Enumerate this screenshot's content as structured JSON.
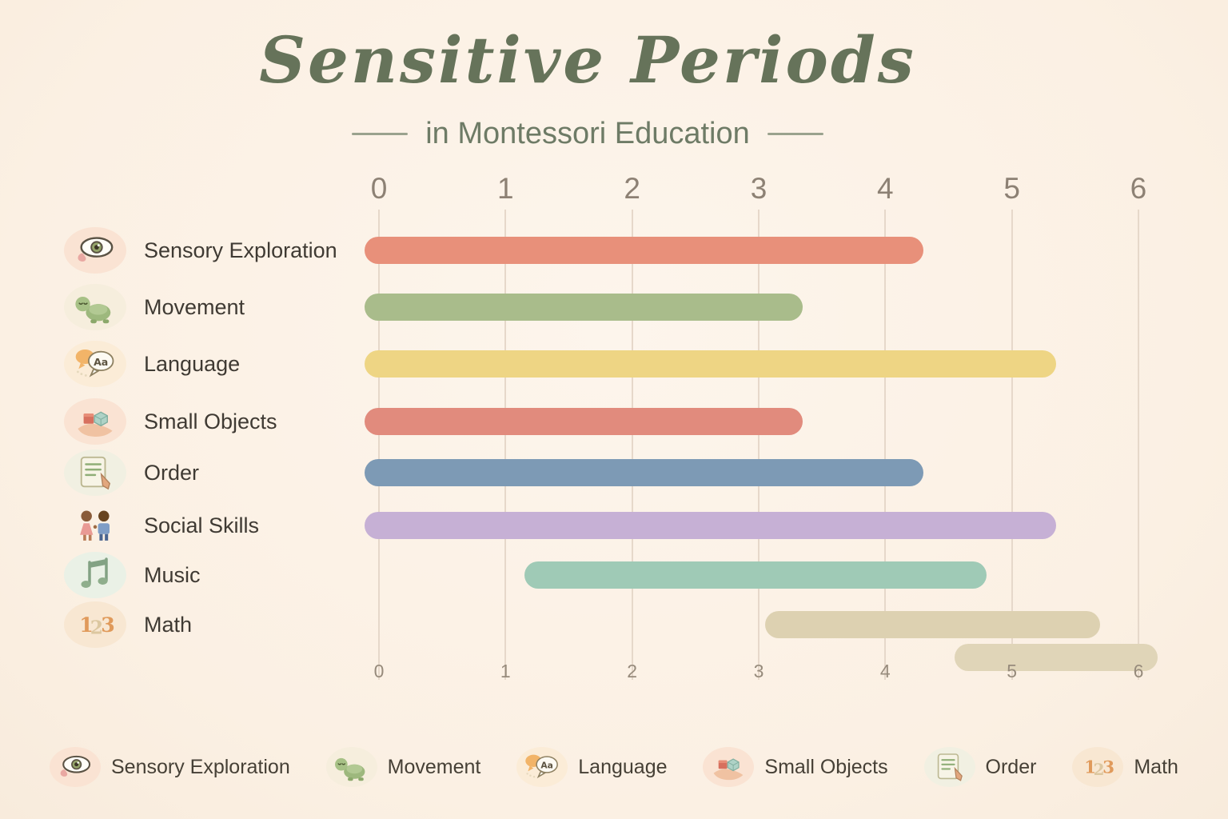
{
  "title": "Sensitive Periods",
  "subtitle": "in Montessori Education",
  "chart_data": {
    "type": "bar",
    "orientation": "horizontal",
    "title": "Sensitive Periods in Montessori Education",
    "xlim": [
      0,
      6
    ],
    "x_ticks": [
      "0",
      "1",
      "2",
      "3",
      "4",
      "5",
      "6"
    ],
    "x_ticks_position": "top and bottom",
    "grid": true,
    "legend_position": "bottom",
    "rows": [
      {
        "label": "Sensory Exploration",
        "icon": "eye-icon",
        "start": 0,
        "end": 4.3,
        "color": "#e8907a"
      },
      {
        "label": "Movement",
        "icon": "crawling-baby-icon",
        "start": 0,
        "end": 3.35,
        "color": "#a9bc8b"
      },
      {
        "label": "Language",
        "icon": "speech-bubbles-icon",
        "start": 0,
        "end": 5.35,
        "color": "#eed584"
      },
      {
        "label": "Small Objects",
        "icon": "hand-with-blocks-icon",
        "start": 0,
        "end": 3.35,
        "color": "#e18b7d"
      },
      {
        "label": "Order",
        "icon": "checklist-icon",
        "start": 0,
        "end": 4.3,
        "color": "#7d9ab5"
      },
      {
        "label": "Social Skills",
        "icon": "children-icon",
        "start": 0,
        "end": 5.35,
        "color": "#c6b0d5"
      },
      {
        "label": "Music",
        "icon": "music-note-icon",
        "start": 1.15,
        "end": 4.8,
        "color": "#9fcab6"
      },
      {
        "label": "Math",
        "icon": "numbers-123-icon",
        "start": 3.05,
        "end": 5.7,
        "color": "#ddd1b1"
      }
    ],
    "unlabeled_overflow_bar": {
      "start": 4.55,
      "end": 6.15,
      "color": "#e0d5b8"
    }
  },
  "legend": {
    "items": [
      {
        "label": "Sensory Exploration",
        "icon": "eye-icon"
      },
      {
        "label": "Movement",
        "icon": "crawling-baby-icon"
      },
      {
        "label": "Language",
        "icon": "speech-bubbles-icon"
      },
      {
        "label": "Small Objects",
        "icon": "hand-with-blocks-icon"
      },
      {
        "label": "Order",
        "icon": "checklist-icon"
      },
      {
        "label": "Math",
        "icon": "numbers-123-icon"
      }
    ]
  },
  "colors": {
    "background": "#fcf2e7",
    "title_text": "#66735a",
    "subtitle_text": "#6e7b66",
    "grid_line": "#e6d8ca",
    "axis_text_top": "#8d8174",
    "axis_text_bottom": "#978b7c",
    "category_text": "#3f3a33"
  }
}
